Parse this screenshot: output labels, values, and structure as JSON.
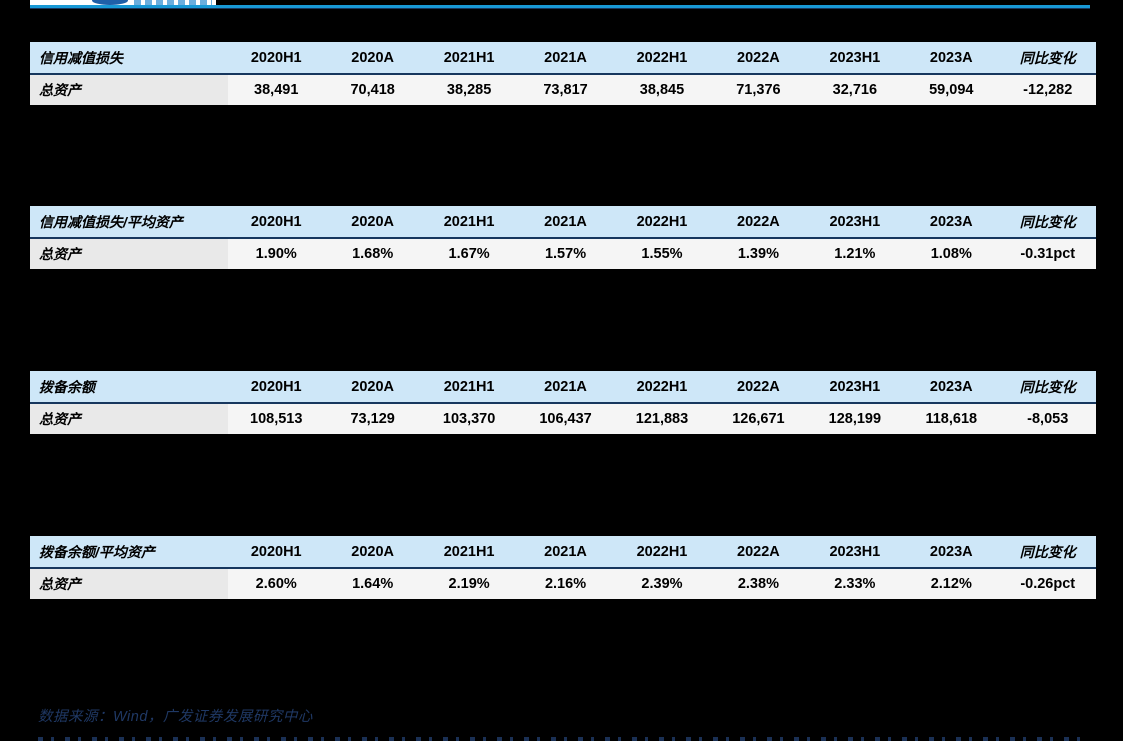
{
  "colors": {
    "page_background": "#000000",
    "brand_rule_blue": "#1899D6",
    "table_header_fill": "#CEE7F8",
    "table_header_underline": "#17375E",
    "row_label_fill": "#E9E9E9",
    "row_value_fill": "#F5F5F5",
    "footer_text_navy": "#1F3864"
  },
  "columns": [
    "2020H1",
    "2020A",
    "2021H1",
    "2021A",
    "2022H1",
    "2022A",
    "2023H1",
    "2023A",
    "同比变化"
  ],
  "tables": [
    {
      "title": "信用减值损失",
      "row_label": "总资产",
      "values": [
        "38,491",
        "70,418",
        "38,285",
        "73,817",
        "38,845",
        "71,376",
        "32,716",
        "59,094",
        "-12,282"
      ]
    },
    {
      "title": "信用减值损失/平均资产",
      "row_label": "总资产",
      "values": [
        "1.90%",
        "1.68%",
        "1.67%",
        "1.57%",
        "1.55%",
        "1.39%",
        "1.21%",
        "1.08%",
        "-0.31pct"
      ]
    },
    {
      "title": "拨备余额",
      "row_label": "总资产",
      "values": [
        "108,513",
        "73,129",
        "103,370",
        "106,437",
        "121,883",
        "126,671",
        "128,199",
        "118,618",
        "-8,053"
      ]
    },
    {
      "title": "拨备余额/平均资产",
      "row_label": "总资产",
      "values": [
        "2.60%",
        "1.64%",
        "2.19%",
        "2.16%",
        "2.39%",
        "2.38%",
        "2.33%",
        "2.12%",
        "-0.26pct"
      ]
    }
  ],
  "footer": {
    "source_note": "数据来源：Wind，广发证券发展研究中心"
  }
}
